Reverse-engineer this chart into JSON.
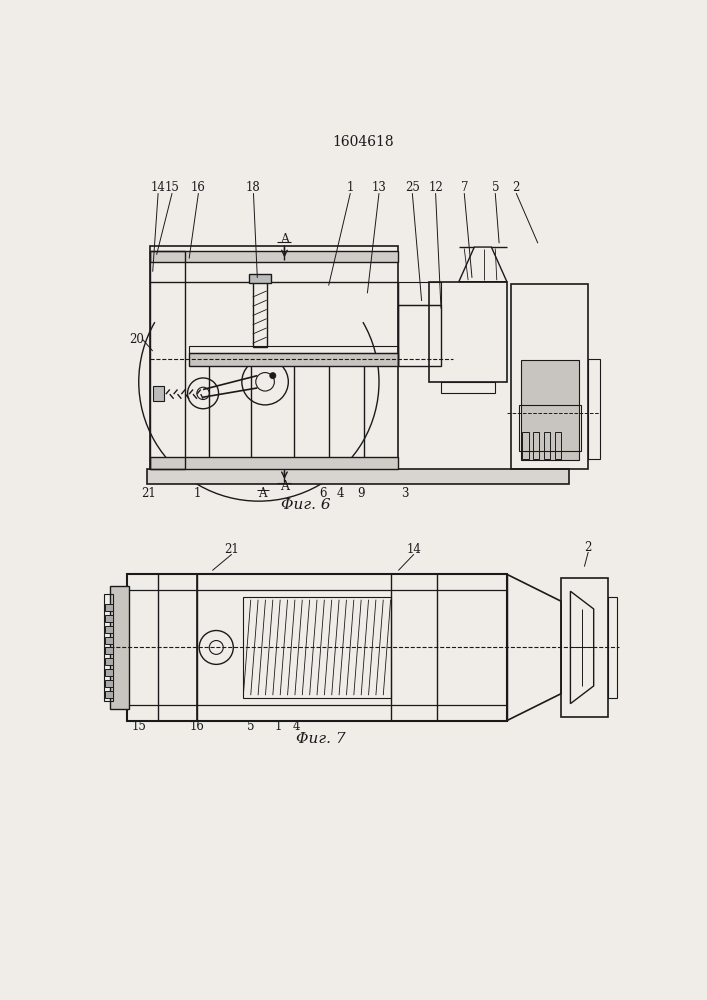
{
  "title": "1604618",
  "fig6_caption": "Φиг. 6",
  "fig7_caption": "Φиг. 7",
  "background_color": "#f0ede8",
  "line_color": "#1a1a1a"
}
